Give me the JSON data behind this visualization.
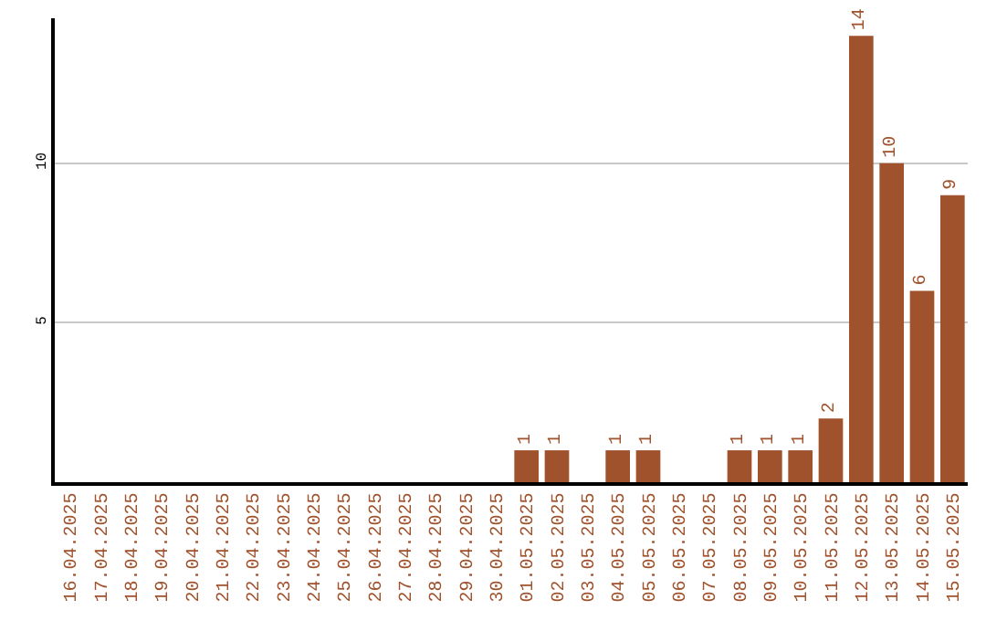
{
  "chart_data": {
    "type": "bar",
    "categories": [
      "16.04.2025",
      "17.04.2025",
      "18.04.2025",
      "19.04.2025",
      "20.04.2025",
      "21.04.2025",
      "22.04.2025",
      "23.04.2025",
      "24.04.2025",
      "25.04.2025",
      "26.04.2025",
      "27.04.2025",
      "28.04.2025",
      "29.04.2025",
      "30.04.2025",
      "01.05.2025",
      "02.05.2025",
      "03.05.2025",
      "04.05.2025",
      "05.05.2025",
      "06.05.2025",
      "07.05.2025",
      "08.05.2025",
      "09.05.2025",
      "10.05.2025",
      "11.05.2025",
      "12.05.2025",
      "13.05.2025",
      "14.05.2025",
      "15.05.2025"
    ],
    "values": [
      0,
      0,
      0,
      0,
      0,
      0,
      0,
      0,
      0,
      0,
      0,
      0,
      0,
      0,
      0,
      1,
      1,
      0,
      1,
      1,
      0,
      0,
      1,
      1,
      1,
      2,
      14,
      10,
      6,
      9
    ],
    "value_labels": [
      null,
      null,
      null,
      null,
      null,
      null,
      null,
      null,
      null,
      null,
      null,
      null,
      null,
      null,
      null,
      "1",
      "1",
      null,
      "1",
      "1",
      null,
      null,
      "1",
      "1",
      "1",
      "2",
      "14",
      "10",
      "6",
      "9"
    ],
    "color": "#a0522d",
    "ylim": [
      0,
      14.55
    ],
    "yticks": [
      5,
      10
    ],
    "grid": "y",
    "legend": false
  }
}
